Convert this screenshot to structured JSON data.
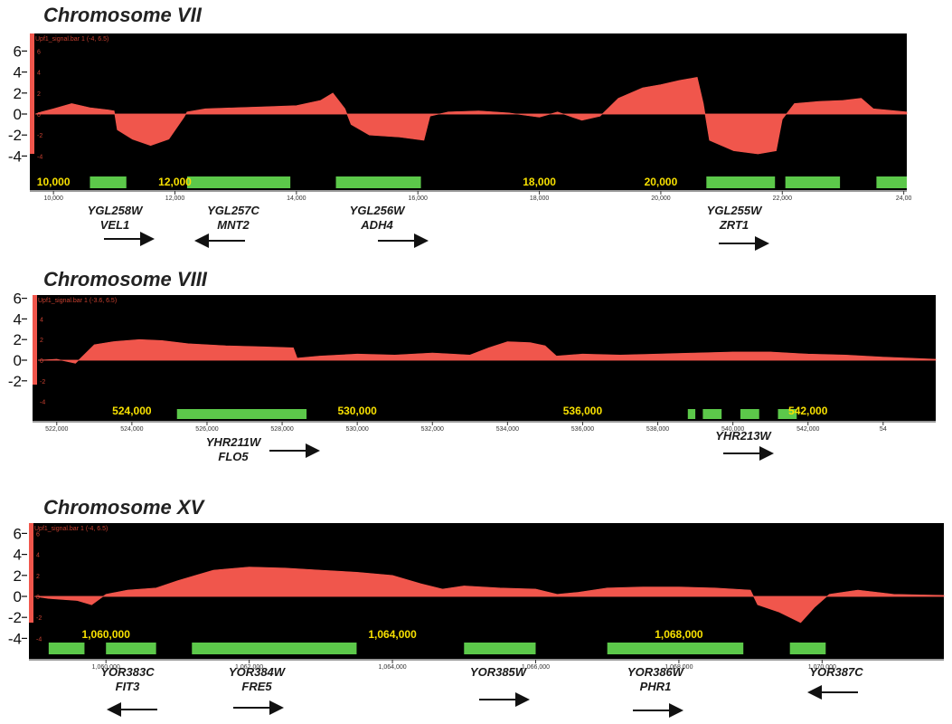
{
  "chart_data": [
    {
      "type": "area",
      "title": "Chromosome VII",
      "track_label": "Upf1_signal.bar 1 (-4, 6.5)",
      "y_ticks": [
        "6",
        "4",
        "2",
        "0",
        "-2",
        "-4"
      ],
      "y_small_ticks": [
        "6",
        "4",
        "2",
        "0",
        "-2",
        "-4"
      ],
      "ylim": [
        -4.5,
        6.5
      ],
      "xlim": [
        9700,
        24050
      ],
      "axis_ticks": [
        "10,000",
        "12,000",
        "14,000",
        "16,000",
        "18,000",
        "20,000",
        "22,000",
        "24,00"
      ],
      "axis_tick_values": [
        10000,
        12000,
        14000,
        16000,
        18000,
        20000,
        22000,
        24000
      ],
      "coord_labels": [
        {
          "text": "10,000",
          "x": 10000
        },
        {
          "text": "12,000",
          "x": 12000
        },
        {
          "text": "18,000",
          "x": 18000
        },
        {
          "text": "20,000",
          "x": 20000
        }
      ],
      "signal": [
        [
          9700,
          0
        ],
        [
          9800,
          0.2
        ],
        [
          10000,
          0.5
        ],
        [
          10300,
          1.0
        ],
        [
          10600,
          0.6
        ],
        [
          10900,
          0.4
        ],
        [
          11000,
          0.3
        ],
        [
          11050,
          -1.5
        ],
        [
          11300,
          -2.4
        ],
        [
          11600,
          -3.0
        ],
        [
          11900,
          -2.4
        ],
        [
          12150,
          -0.3
        ],
        [
          12200,
          0.2
        ],
        [
          12500,
          0.5
        ],
        [
          13000,
          0.6
        ],
        [
          13500,
          0.7
        ],
        [
          14000,
          0.8
        ],
        [
          14400,
          1.3
        ],
        [
          14600,
          2.0
        ],
        [
          14800,
          0.5
        ],
        [
          14900,
          -1.0
        ],
        [
          15200,
          -2.0
        ],
        [
          15700,
          -2.2
        ],
        [
          16100,
          -2.5
        ],
        [
          16200,
          -0.2
        ],
        [
          16500,
          0.2
        ],
        [
          17000,
          0.3
        ],
        [
          17500,
          0.1
        ],
        [
          18000,
          -0.3
        ],
        [
          18300,
          0.2
        ],
        [
          18700,
          -0.6
        ],
        [
          19000,
          -0.2
        ],
        [
          19300,
          1.5
        ],
        [
          19700,
          2.5
        ],
        [
          20000,
          2.8
        ],
        [
          20300,
          3.2
        ],
        [
          20600,
          3.5
        ],
        [
          20700,
          1.0
        ],
        [
          20800,
          -2.5
        ],
        [
          21200,
          -3.5
        ],
        [
          21600,
          -3.8
        ],
        [
          21900,
          -3.5
        ],
        [
          22000,
          -0.5
        ],
        [
          22200,
          1.0
        ],
        [
          22600,
          1.2
        ],
        [
          23000,
          1.3
        ],
        [
          23300,
          1.5
        ],
        [
          23500,
          0.5
        ],
        [
          24050,
          0.2
        ]
      ],
      "genes": [
        [
          10600,
          11200
        ],
        [
          12200,
          13900
        ],
        [
          14650,
          16050
        ],
        [
          20750,
          21880
        ],
        [
          22050,
          22950
        ],
        [
          23550,
          24050
        ]
      ],
      "annotations": [
        {
          "gene": "YGL258W",
          "alias": "VEL1",
          "dir": "right"
        },
        {
          "gene": "YGL257C",
          "alias": "MNT2",
          "dir": "left"
        },
        {
          "gene": "YGL256W",
          "alias": "ADH4",
          "dir": "right"
        },
        {
          "gene": "YGL255W",
          "alias": "ZRT1",
          "dir": "right"
        }
      ]
    },
    {
      "type": "area",
      "title": "Chromosome VIII",
      "track_label": "Upf1_signal.bar 1 (-3.6, 6.5)",
      "y_ticks": [
        "6",
        "4",
        "2",
        "0",
        "-2"
      ],
      "y_small_ticks": [
        "6",
        "4",
        "2",
        "0",
        "-2",
        "-4"
      ],
      "ylim": [
        -3.6,
        6.5
      ],
      "xlim": [
        521500,
        545400
      ],
      "axis_ticks": [
        "522,000",
        "524,000",
        "526,000",
        "528,000",
        "530,000",
        "532,000",
        "534,000",
        "536,000",
        "538,000",
        "540,000",
        "542,000",
        "54"
      ],
      "axis_tick_values": [
        522000,
        524000,
        526000,
        528000,
        530000,
        532000,
        534000,
        536000,
        538000,
        540000,
        542000,
        544000
      ],
      "coord_labels": [
        {
          "text": "524,000",
          "x": 524000
        },
        {
          "text": "530,000",
          "x": 530000
        },
        {
          "text": "536,000",
          "x": 536000
        },
        {
          "text": "542,000",
          "x": 542000
        }
      ],
      "signal": [
        [
          521500,
          0
        ],
        [
          522000,
          0.1
        ],
        [
          522500,
          -0.3
        ],
        [
          523000,
          1.5
        ],
        [
          523500,
          1.8
        ],
        [
          524200,
          2.0
        ],
        [
          524800,
          1.9
        ],
        [
          525500,
          1.6
        ],
        [
          526500,
          1.4
        ],
        [
          527500,
          1.3
        ],
        [
          528300,
          1.2
        ],
        [
          528400,
          0.2
        ],
        [
          529000,
          0.4
        ],
        [
          530000,
          0.6
        ],
        [
          531000,
          0.5
        ],
        [
          532000,
          0.7
        ],
        [
          533000,
          0.5
        ],
        [
          533500,
          1.2
        ],
        [
          534000,
          1.8
        ],
        [
          534600,
          1.7
        ],
        [
          535000,
          1.4
        ],
        [
          535300,
          0.4
        ],
        [
          536000,
          0.6
        ],
        [
          537000,
          0.5
        ],
        [
          538000,
          0.6
        ],
        [
          539000,
          0.7
        ],
        [
          540000,
          0.8
        ],
        [
          541000,
          0.8
        ],
        [
          542000,
          0.6
        ],
        [
          543000,
          0.5
        ],
        [
          544000,
          0.3
        ],
        [
          545400,
          0.1
        ]
      ],
      "genes": [
        [
          525200,
          528650
        ],
        [
          538800,
          539000
        ],
        [
          539200,
          539700
        ],
        [
          540200,
          540700
        ],
        [
          541200,
          541700
        ]
      ],
      "annotations": [
        {
          "gene": "YHR211W",
          "alias": "FLO5",
          "dir": "right"
        },
        {
          "gene": "YHR213W",
          "alias": "",
          "dir": "right"
        }
      ]
    },
    {
      "type": "area",
      "title": "Chromosome XV",
      "track_label": "Upf1_signal.bar 1 (-4, 6.5)",
      "y_ticks": [
        "6",
        "4",
        "2",
        "0",
        "-2",
        "-4"
      ],
      "y_small_ticks": [
        "6",
        "4",
        "2",
        "0",
        "-2",
        "-4"
      ],
      "ylim": [
        -4.5,
        6.5
      ],
      "xlim": [
        1059000,
        1071700
      ],
      "axis_ticks": [
        "1,060,000",
        "1,062,000",
        "1,064,000",
        "1,066,000",
        "1,068,000",
        "1,070,000"
      ],
      "axis_tick_values": [
        1060000,
        1062000,
        1064000,
        1066000,
        1068000,
        1070000
      ],
      "coord_labels": [
        {
          "text": "1,060,000",
          "x": 1060000
        },
        {
          "text": "1,064,000",
          "x": 1064000
        },
        {
          "text": "1,068,000",
          "x": 1068000
        }
      ],
      "signal": [
        [
          1059000,
          0
        ],
        [
          1059200,
          -0.2
        ],
        [
          1059600,
          -0.4
        ],
        [
          1059800,
          -0.8
        ],
        [
          1060000,
          0.2
        ],
        [
          1060300,
          0.6
        ],
        [
          1060700,
          0.8
        ],
        [
          1061000,
          1.5
        ],
        [
          1061500,
          2.5
        ],
        [
          1062000,
          2.8
        ],
        [
          1062500,
          2.7
        ],
        [
          1063000,
          2.5
        ],
        [
          1063500,
          2.3
        ],
        [
          1064000,
          2.0
        ],
        [
          1064400,
          1.2
        ],
        [
          1064700,
          0.7
        ],
        [
          1065000,
          1.0
        ],
        [
          1065500,
          0.8
        ],
        [
          1066000,
          0.7
        ],
        [
          1066300,
          0.2
        ],
        [
          1066600,
          0.4
        ],
        [
          1067000,
          0.8
        ],
        [
          1067500,
          0.9
        ],
        [
          1068000,
          0.9
        ],
        [
          1068500,
          0.8
        ],
        [
          1069000,
          0.6
        ],
        [
          1069100,
          -0.8
        ],
        [
          1069400,
          -1.5
        ],
        [
          1069700,
          -2.5
        ],
        [
          1069900,
          -1.0
        ],
        [
          1070100,
          0.2
        ],
        [
          1070500,
          0.6
        ],
        [
          1071000,
          0.2
        ],
        [
          1071700,
          0.1
        ]
      ],
      "genes": [
        [
          1059200,
          1059700
        ],
        [
          1060000,
          1060700
        ],
        [
          1061200,
          1063500
        ],
        [
          1065000,
          1066000
        ],
        [
          1067000,
          1068900
        ],
        [
          1069550,
          1070050
        ]
      ],
      "annotations": [
        {
          "gene": "YOR383C",
          "alias": "FIT3",
          "dir": "left"
        },
        {
          "gene": "YOR384W",
          "alias": "FRE5",
          "dir": "right"
        },
        {
          "gene": "YOR385W",
          "alias": "",
          "dir": "right"
        },
        {
          "gene": "YOR386W",
          "alias": "PHR1",
          "dir": "right"
        },
        {
          "gene": "YOR387C",
          "alias": "",
          "dir": "left"
        }
      ]
    }
  ],
  "colors": {
    "signal": "#f0564c",
    "gene": "#5cc84a",
    "coord_label": "#f7e000",
    "track_bg": "#000000",
    "small_tick": "#c94030"
  }
}
